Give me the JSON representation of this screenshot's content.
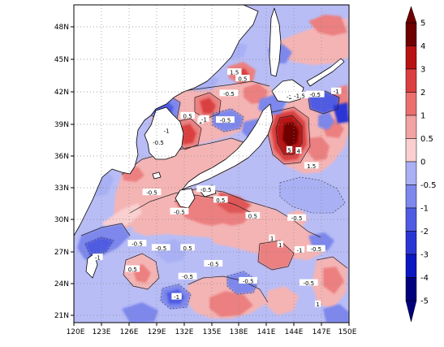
{
  "map": {
    "latitude_labels": [
      "48N",
      "45N",
      "42N",
      "39N",
      "36N",
      "33N",
      "30N",
      "27N",
      "24N",
      "21N"
    ],
    "longitude_labels": [
      "120E",
      "123E",
      "126E",
      "129E",
      "132E",
      "135E",
      "138E",
      "141E",
      "144E",
      "147E",
      "150E"
    ],
    "contour_labels": [
      {
        "text": "0.5",
        "lon": 132.4,
        "lat": 39.6
      },
      {
        "text": "1",
        "lon": 133.8,
        "lat": 39.1
      },
      {
        "text": "-0.5",
        "lon": 136.9,
        "lat": 41.7
      },
      {
        "text": "1.5",
        "lon": 137.5,
        "lat": 43.7
      },
      {
        "text": "0.5",
        "lon": 138.4,
        "lat": 43.1
      },
      {
        "text": "-2",
        "lon": 143.5,
        "lat": 41.4
      },
      {
        "text": "-1.5",
        "lon": 144.6,
        "lat": 41.5
      },
      {
        "text": "-0.5",
        "lon": 146.3,
        "lat": 41.6
      },
      {
        "text": "-1",
        "lon": 148.6,
        "lat": 41.9
      },
      {
        "text": "-0.5",
        "lon": 129.2,
        "lat": 37.1
      },
      {
        "text": "-1",
        "lon": 130.1,
        "lat": 38.2
      },
      {
        "text": "-1",
        "lon": 134.2,
        "lat": 39.3
      },
      {
        "text": "-0.5",
        "lon": 136.5,
        "lat": 39.2
      },
      {
        "text": "5",
        "lon": 143.5,
        "lat": 36.4
      },
      {
        "text": "4",
        "lon": 144.5,
        "lat": 36.3
      },
      {
        "text": "1.5",
        "lon": 145.9,
        "lat": 34.9
      },
      {
        "text": "-0.5",
        "lon": 128.5,
        "lat": 32.4
      },
      {
        "text": "-0.5",
        "lon": 134.4,
        "lat": 32.7
      },
      {
        "text": "0.5",
        "lon": 136.0,
        "lat": 31.7
      },
      {
        "text": "-0.5",
        "lon": 131.5,
        "lat": 30.6
      },
      {
        "text": "-0.5",
        "lon": 144.3,
        "lat": 30.0
      },
      {
        "text": "0.5",
        "lon": 139.5,
        "lat": 30.2
      },
      {
        "text": "1",
        "lon": 141.6,
        "lat": 28.1
      },
      {
        "text": "1",
        "lon": 142.5,
        "lat": 27.5
      },
      {
        "text": "-1",
        "lon": 144.6,
        "lat": 27.0
      },
      {
        "text": "-0.5",
        "lon": 146.4,
        "lat": 27.1
      },
      {
        "text": "-0.5",
        "lon": 129.5,
        "lat": 27.2
      },
      {
        "text": "0.5",
        "lon": 132.4,
        "lat": 27.2
      },
      {
        "text": "-1",
        "lon": 122.6,
        "lat": 26.3
      },
      {
        "text": "-0.5",
        "lon": 126.9,
        "lat": 27.6
      },
      {
        "text": "-0.5",
        "lon": 135.2,
        "lat": 25.7
      },
      {
        "text": "0.5",
        "lon": 126.4,
        "lat": 25.2
      },
      {
        "text": "-0.5",
        "lon": 132.4,
        "lat": 24.5
      },
      {
        "text": "-0.5",
        "lon": 139.0,
        "lat": 24.1
      },
      {
        "text": "-1",
        "lon": 131.2,
        "lat": 22.6
      },
      {
        "text": "-0.5",
        "lon": 145.6,
        "lat": 23.9
      },
      {
        "text": "1",
        "lon": 146.6,
        "lat": 21.9
      }
    ]
  },
  "colorbar": {
    "labels": [
      "5",
      "4",
      "3",
      "2",
      "1",
      "0.5",
      "0",
      "-0.5",
      "-1",
      "-2",
      "-3",
      "-4",
      "-5"
    ],
    "colors": [
      "#6e0000",
      "#b81212",
      "#db3f3f",
      "#ec6f6f",
      "#f3a3a3",
      "#f9cfcf",
      "#d3d6fb",
      "#a9b0f4",
      "#7d87ec",
      "#4f5be2",
      "#2a36d4",
      "#0b17c0",
      "#00007e"
    ]
  }
}
